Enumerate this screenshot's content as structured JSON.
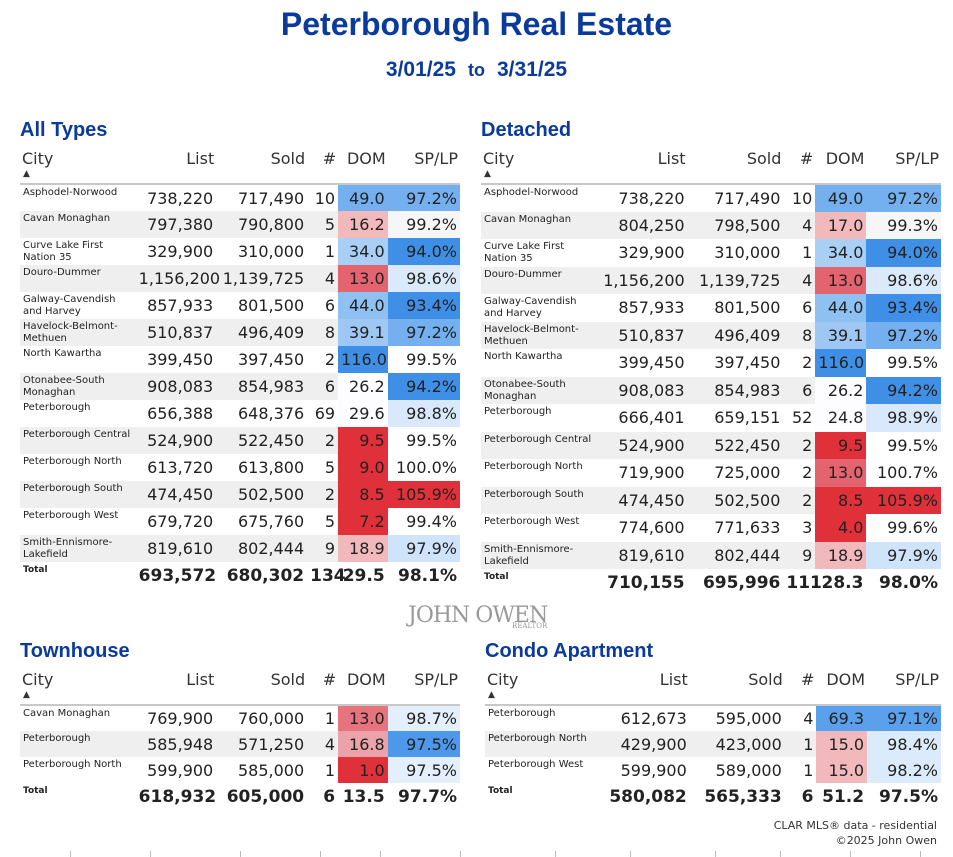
{
  "header": {
    "title": "Peterborough Real Estate",
    "date_from": "3/01/25",
    "date_sep": "to",
    "date_to": "3/31/25"
  },
  "columns": [
    "City",
    "List",
    "Sold",
    "#",
    "DOM",
    "SP/LP"
  ],
  "panels": [
    {
      "title": "All Types",
      "rows": [
        [
          "Asphodel-Norwood",
          "738,220",
          "717,490",
          "10",
          "49.0",
          "97.2%"
        ],
        [
          "Cavan Monaghan",
          "797,380",
          "790,800",
          "5",
          "16.2",
          "99.2%"
        ],
        [
          "Curve Lake First Nation 35",
          "329,900",
          "310,000",
          "1",
          "34.0",
          "94.0%"
        ],
        [
          "Douro-Dummer",
          "1,156,200",
          "1,139,725",
          "4",
          "13.0",
          "98.6%"
        ],
        [
          "Galway-Cavendish and Harvey",
          "857,933",
          "801,500",
          "6",
          "44.0",
          "93.4%"
        ],
        [
          "Havelock-Belmont-Methuen",
          "510,837",
          "496,409",
          "8",
          "39.1",
          "97.2%"
        ],
        [
          "North Kawartha",
          "399,450",
          "397,450",
          "2",
          "116.0",
          "99.5%"
        ],
        [
          "Otonabee-South Monaghan",
          "908,083",
          "854,983",
          "6",
          "26.2",
          "94.2%"
        ],
        [
          "Peterborough",
          "656,388",
          "648,376",
          "69",
          "29.6",
          "98.8%"
        ],
        [
          "Peterborough Central",
          "524,900",
          "522,450",
          "2",
          "9.5",
          "99.5%"
        ],
        [
          "Peterborough North",
          "613,720",
          "613,800",
          "5",
          "9.0",
          "100.0%"
        ],
        [
          "Peterborough South",
          "474,450",
          "502,500",
          "2",
          "8.5",
          "105.9%"
        ],
        [
          "Peterborough West",
          "679,720",
          "675,760",
          "5",
          "7.2",
          "99.4%"
        ],
        [
          "Smith-Ennismore-Lakefield",
          "819,610",
          "802,444",
          "9",
          "18.9",
          "97.9%"
        ]
      ],
      "total": [
        "Total",
        "693,572",
        "680,302",
        "134",
        "29.5",
        "98.1%"
      ],
      "dom_colors": [
        "#74b0f0",
        "#f2b9bd",
        "#a9cff5",
        "#e3636f",
        "#8fc0f2",
        "#9ec8f3",
        "#3f8fe7",
        "#fdfdff",
        "#fdfdff",
        "#e0303a",
        "#e0303a",
        "#e0303a",
        "#e0303a",
        "#f2b9bd"
      ],
      "splp_colors": [
        "#74b0f0",
        "#f6f6f6",
        "#3f8fe7",
        "#dbeafb",
        "#3f8fe7",
        "#74b0f0",
        "#ffffff",
        "#3f8fe7",
        "#d9e9fb",
        "#ffffff",
        "#ffffff",
        "#e0303a",
        "#ffffff",
        "#cfe3fa"
      ]
    },
    {
      "title": "Detached",
      "rows": [
        [
          "Asphodel-Norwood",
          "738,220",
          "717,490",
          "10",
          "49.0",
          "97.2%"
        ],
        [
          "Cavan Monaghan",
          "804,250",
          "798,500",
          "4",
          "17.0",
          "99.3%"
        ],
        [
          "Curve Lake First Nation 35",
          "329,900",
          "310,000",
          "1",
          "34.0",
          "94.0%"
        ],
        [
          "Douro-Dummer",
          "1,156,200",
          "1,139,725",
          "4",
          "13.0",
          "98.6%"
        ],
        [
          "Galway-Cavendish and Harvey",
          "857,933",
          "801,500",
          "6",
          "44.0",
          "93.4%"
        ],
        [
          "Havelock-Belmont-Methuen",
          "510,837",
          "496,409",
          "8",
          "39.1",
          "97.2%"
        ],
        [
          "North Kawartha",
          "399,450",
          "397,450",
          "2",
          "116.0",
          "99.5%"
        ],
        [
          "Otonabee-South Monaghan",
          "908,083",
          "854,983",
          "6",
          "26.2",
          "94.2%"
        ],
        [
          "Peterborough",
          "666,401",
          "659,151",
          "52",
          "24.8",
          "98.9%"
        ],
        [
          "Peterborough Central",
          "524,900",
          "522,450",
          "2",
          "9.5",
          "99.5%"
        ],
        [
          "Peterborough North",
          "719,900",
          "725,000",
          "2",
          "13.0",
          "100.7%"
        ],
        [
          "Peterborough South",
          "474,450",
          "502,500",
          "2",
          "8.5",
          "105.9%"
        ],
        [
          "Peterborough West",
          "774,600",
          "771,633",
          "3",
          "4.0",
          "99.6%"
        ],
        [
          "Smith-Ennismore-Lakefield",
          "819,610",
          "802,444",
          "9",
          "18.9",
          "97.9%"
        ]
      ],
      "total": [
        "Total",
        "710,155",
        "695,996",
        "111",
        "28.3",
        "98.0%"
      ],
      "dom_colors": [
        "#74b0f0",
        "#f2b9bd",
        "#a9cff5",
        "#e3636f",
        "#8fc0f2",
        "#9ec8f3",
        "#3f8fe7",
        "#fdfdff",
        "#fdfdff",
        "#e0303a",
        "#e3636f",
        "#e0303a",
        "#e0303a",
        "#f2b9bd"
      ],
      "splp_colors": [
        "#74b0f0",
        "#f6f6f6",
        "#3f8fe7",
        "#dbeafb",
        "#3f8fe7",
        "#74b0f0",
        "#ffffff",
        "#3f8fe7",
        "#d9e9fb",
        "#ffffff",
        "#ffffff",
        "#e0303a",
        "#ffffff",
        "#cfe3fa"
      ]
    },
    {
      "title": "Townhouse",
      "rows": [
        [
          "Cavan Monaghan",
          "769,900",
          "760,000",
          "1",
          "13.0",
          "98.7%"
        ],
        [
          "Peterborough",
          "585,948",
          "571,250",
          "4",
          "16.8",
          "97.5%"
        ],
        [
          "Peterborough North",
          "599,900",
          "585,000",
          "1",
          "1.0",
          "97.5%"
        ]
      ],
      "total": [
        "Total",
        "618,932",
        "605,000",
        "6",
        "13.5",
        "97.7%"
      ],
      "dom_colors": [
        "#e6747e",
        "#eba3a9",
        "#e0303a"
      ],
      "splp_colors": [
        "#e4effc",
        "#4d98ea",
        "#e4effc"
      ]
    },
    {
      "title": "Condo Apartment",
      "rows": [
        [
          "Peterborough",
          "612,673",
          "595,000",
          "4",
          "69.3",
          "97.1%"
        ],
        [
          "Peterborough North",
          "429,900",
          "423,000",
          "1",
          "15.0",
          "98.4%"
        ],
        [
          "Peterborough West",
          "599,900",
          "589,000",
          "1",
          "15.0",
          "98.2%"
        ]
      ],
      "total": [
        "Total",
        "580,082",
        "565,333",
        "6",
        "51.2",
        "97.5%"
      ],
      "dom_colors": [
        "#5aa0ec",
        "#f2b9bd",
        "#f2b9bd"
      ],
      "splp_colors": [
        "#5aa0ec",
        "#dcebfb",
        "#dcebfb"
      ]
    }
  ],
  "logo": {
    "name": "JOHN OWEN",
    "sub": "REALTOR"
  },
  "footer": {
    "line1": "CLAR MLS® data - residential",
    "line2": "©2025 John Owen"
  }
}
